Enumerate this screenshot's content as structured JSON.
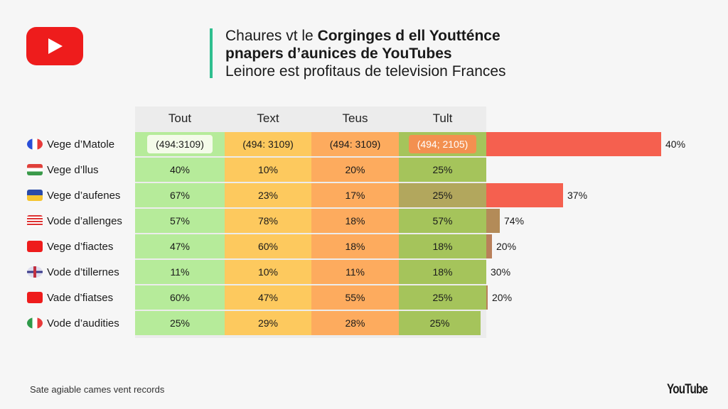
{
  "header": {
    "title_line1_plain": "Chaures vt le ",
    "title_line1_bold": "Corginges d ell Youtténce",
    "title_line2_bold": "pnapers d’aunices de YouTubes",
    "subtitle": "Leinore est profitaus de television Frances"
  },
  "table": {
    "columns": [
      "Tout",
      "Text",
      "Teus",
      "Tult"
    ],
    "rows": [
      {
        "label": "Vege d’Matole",
        "flag": "france-flag-icon",
        "cells": [
          "(494:3109)",
          "(494: 3109)",
          "(494: 3109)",
          "(494; 2105)"
        ],
        "bar_label": "40%",
        "bar_color": "#f5604f"
      },
      {
        "label": "Vege d’llus",
        "flag": "hungary-flag-icon",
        "cells": [
          "40%",
          "10%",
          "20%",
          "25%"
        ],
        "bar_label": ""
      },
      {
        "label": "Vege d’aufenes",
        "flag": "blue-yellow-flag-icon",
        "cells": [
          "67%",
          "23%",
          "17%",
          "25%"
        ],
        "bar_label": "37%",
        "bar_color": "#f5604f"
      },
      {
        "label": "Vode d’allenges",
        "flag": "malaysia-flag-icon",
        "cells": [
          "57%",
          "78%",
          "18%",
          "57%"
        ],
        "bar_label": "74%",
        "bar_color": "#b38b58"
      },
      {
        "label": "Vege d’fiactes",
        "flag": "youtube-icon",
        "cells": [
          "47%",
          "60%",
          "18%",
          "18%"
        ],
        "bar_label": "20%",
        "bar_color": "#b9805a"
      },
      {
        "label": "Vode d’tillernes",
        "flag": "cross-flag-icon",
        "cells": [
          "11%",
          "10%",
          "11%",
          "18%"
        ],
        "bar_label": "30%"
      },
      {
        "label": "Vade d’fiatses",
        "flag": "youtube-icon",
        "cells": [
          "60%",
          "47%",
          "55%",
          "25%"
        ],
        "bar_label": "20%",
        "bar_color": "#b9805a"
      },
      {
        "label": "Vode d’audities",
        "flag": "italy-flag-icon",
        "cells": [
          "25%",
          "29%",
          "28%",
          "25%"
        ],
        "bar_label": ""
      }
    ]
  },
  "footer": {
    "note": "Sate agiable cames vent records",
    "watermark": "YouTube"
  },
  "colors": {
    "green": "#b6eb9a",
    "yellow": "#fdc95e",
    "orange": "#fdab5e",
    "olive": "#a5c45b",
    "red": "#f5604f",
    "brand": "#ee1c1c"
  }
}
